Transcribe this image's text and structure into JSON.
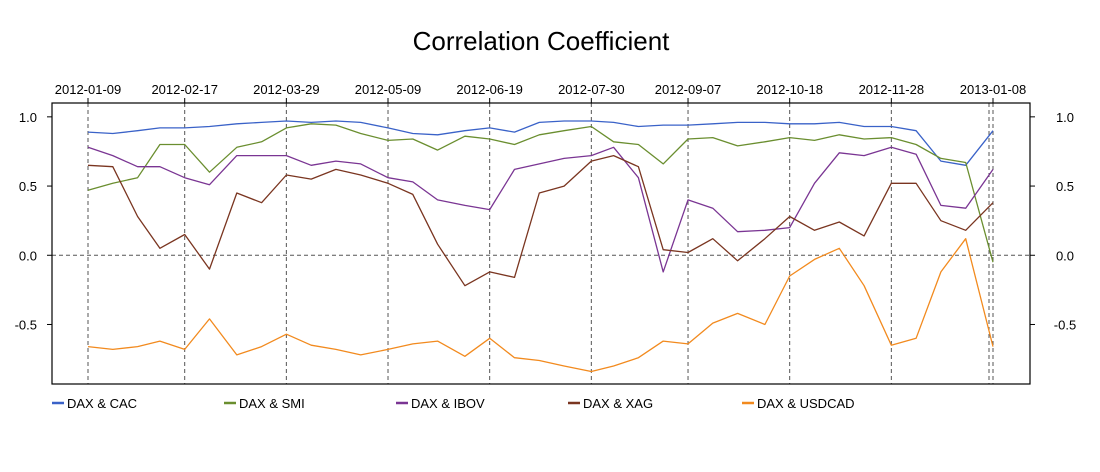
{
  "chart_data": {
    "type": "line",
    "title": "Correlation Coefficient",
    "xlabel": "",
    "ylabel": "",
    "ylim": [
      -0.93,
      1.1
    ],
    "grid": "dashed reference lines at y=0 and at each labeled date",
    "legend_position": "bottom",
    "x_tick_labels": [
      "2012-01-09",
      "2012-02-17",
      "2012-03-29",
      "2012-05-09",
      "2012-06-19",
      "2012-07-30",
      "2012-09-07",
      "2012-10-18",
      "2012-11-28",
      "2013-01-08"
    ],
    "y_ticks": [
      1.0,
      0.5,
      0.0,
      -0.5
    ],
    "y_tick_labels": [
      "1.0",
      "0.5",
      "0.0",
      "-0.5"
    ],
    "x": [
      "2012-01-09",
      "2012-01-19",
      "2012-01-29",
      "2012-02-07",
      "2012-02-17",
      "2012-02-27",
      "2012-03-09",
      "2012-03-19",
      "2012-03-29",
      "2012-04-08",
      "2012-04-18",
      "2012-04-28",
      "2012-05-09",
      "2012-05-19",
      "2012-05-29",
      "2012-06-09",
      "2012-06-19",
      "2012-06-29",
      "2012-07-09",
      "2012-07-19",
      "2012-07-30",
      "2012-08-08",
      "2012-08-18",
      "2012-08-28",
      "2012-09-07",
      "2012-09-17",
      "2012-09-27",
      "2012-10-08",
      "2012-10-18",
      "2012-10-28",
      "2012-11-07",
      "2012-11-17",
      "2012-11-28",
      "2012-12-08",
      "2012-12-18",
      "2012-12-28",
      "2013-01-08"
    ],
    "series": [
      {
        "name": "DAX & CAC",
        "color": "#3A62C8",
        "values": [
          0.89,
          0.88,
          0.9,
          0.92,
          0.92,
          0.93,
          0.95,
          0.96,
          0.97,
          0.96,
          0.97,
          0.96,
          0.92,
          0.88,
          0.87,
          0.9,
          0.92,
          0.89,
          0.96,
          0.97,
          0.97,
          0.96,
          0.93,
          0.94,
          0.94,
          0.95,
          0.96,
          0.96,
          0.95,
          0.95,
          0.96,
          0.93,
          0.93,
          0.9,
          0.68,
          0.65,
          0.9
        ]
      },
      {
        "name": "DAX & SMI",
        "color": "#6A8E2F",
        "values": [
          0.47,
          0.52,
          0.56,
          0.8,
          0.8,
          0.6,
          0.78,
          0.82,
          0.92,
          0.95,
          0.94,
          0.88,
          0.83,
          0.84,
          0.76,
          0.86,
          0.84,
          0.8,
          0.87,
          0.9,
          0.93,
          0.82,
          0.8,
          0.66,
          0.84,
          0.85,
          0.79,
          0.82,
          0.85,
          0.83,
          0.87,
          0.84,
          0.85,
          0.8,
          0.7,
          0.67,
          -0.05
        ]
      },
      {
        "name": "DAX & IBOV",
        "color": "#7A3593",
        "values": [
          0.78,
          0.72,
          0.64,
          0.64,
          0.56,
          0.51,
          0.72,
          0.72,
          0.72,
          0.65,
          0.68,
          0.66,
          0.56,
          0.53,
          0.4,
          0.36,
          0.33,
          0.62,
          0.66,
          0.7,
          0.72,
          0.78,
          0.56,
          -0.12,
          0.4,
          0.34,
          0.17,
          0.18,
          0.2,
          0.52,
          0.74,
          0.72,
          0.78,
          0.73,
          0.36,
          0.34,
          0.62
        ]
      },
      {
        "name": "DAX & XAG",
        "color": "#7A3520",
        "values": [
          0.65,
          0.64,
          0.28,
          0.05,
          0.15,
          -0.1,
          0.45,
          0.38,
          0.58,
          0.55,
          0.62,
          0.58,
          0.52,
          0.44,
          0.08,
          -0.22,
          -0.12,
          -0.16,
          0.45,
          0.5,
          0.68,
          0.72,
          0.64,
          0.04,
          0.02,
          0.12,
          -0.04,
          0.12,
          0.28,
          0.18,
          0.24,
          0.14,
          0.52,
          0.52,
          0.25,
          0.18,
          0.38
        ]
      },
      {
        "name": "DAX & USDCAD",
        "color": "#F28A1E",
        "values": [
          -0.66,
          -0.68,
          -0.66,
          -0.62,
          -0.68,
          -0.46,
          -0.72,
          -0.66,
          -0.57,
          -0.65,
          -0.68,
          -0.72,
          -0.68,
          -0.64,
          -0.62,
          -0.73,
          -0.6,
          -0.74,
          -0.76,
          -0.8,
          -0.84,
          -0.8,
          -0.74,
          -0.62,
          -0.64,
          -0.49,
          -0.42,
          -0.5,
          -0.15,
          -0.03,
          0.05,
          -0.22,
          -0.65,
          -0.6,
          -0.12,
          0.12,
          -0.66
        ]
      }
    ]
  }
}
